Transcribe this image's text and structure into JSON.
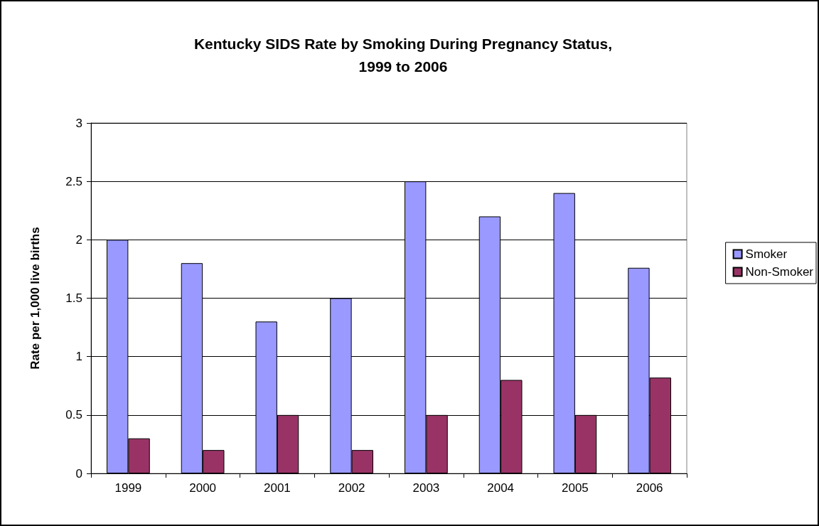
{
  "chart_data": {
    "type": "bar",
    "title": "Kentucky SIDS Rate by Smoking During Pregnancy Status,\n1999 to 2006",
    "ylabel": "Rate per 1,000 live births",
    "categories": [
      "1999",
      "2000",
      "2001",
      "2002",
      "2003",
      "2004",
      "2005",
      "2006"
    ],
    "series": [
      {
        "name": "Smoker",
        "color": "#9999ff",
        "values": [
          2.0,
          1.8,
          1.3,
          1.5,
          2.5,
          2.2,
          2.4,
          1.76
        ]
      },
      {
        "name": "Non-Smoker",
        "color": "#993366",
        "values": [
          0.3,
          0.2,
          0.5,
          0.2,
          0.5,
          0.8,
          0.5,
          0.82
        ]
      }
    ],
    "ylim": [
      0,
      3
    ],
    "yticks": [
      0,
      0.5,
      1,
      1.5,
      2,
      2.5,
      3
    ],
    "grid": "y",
    "legend": "right"
  }
}
